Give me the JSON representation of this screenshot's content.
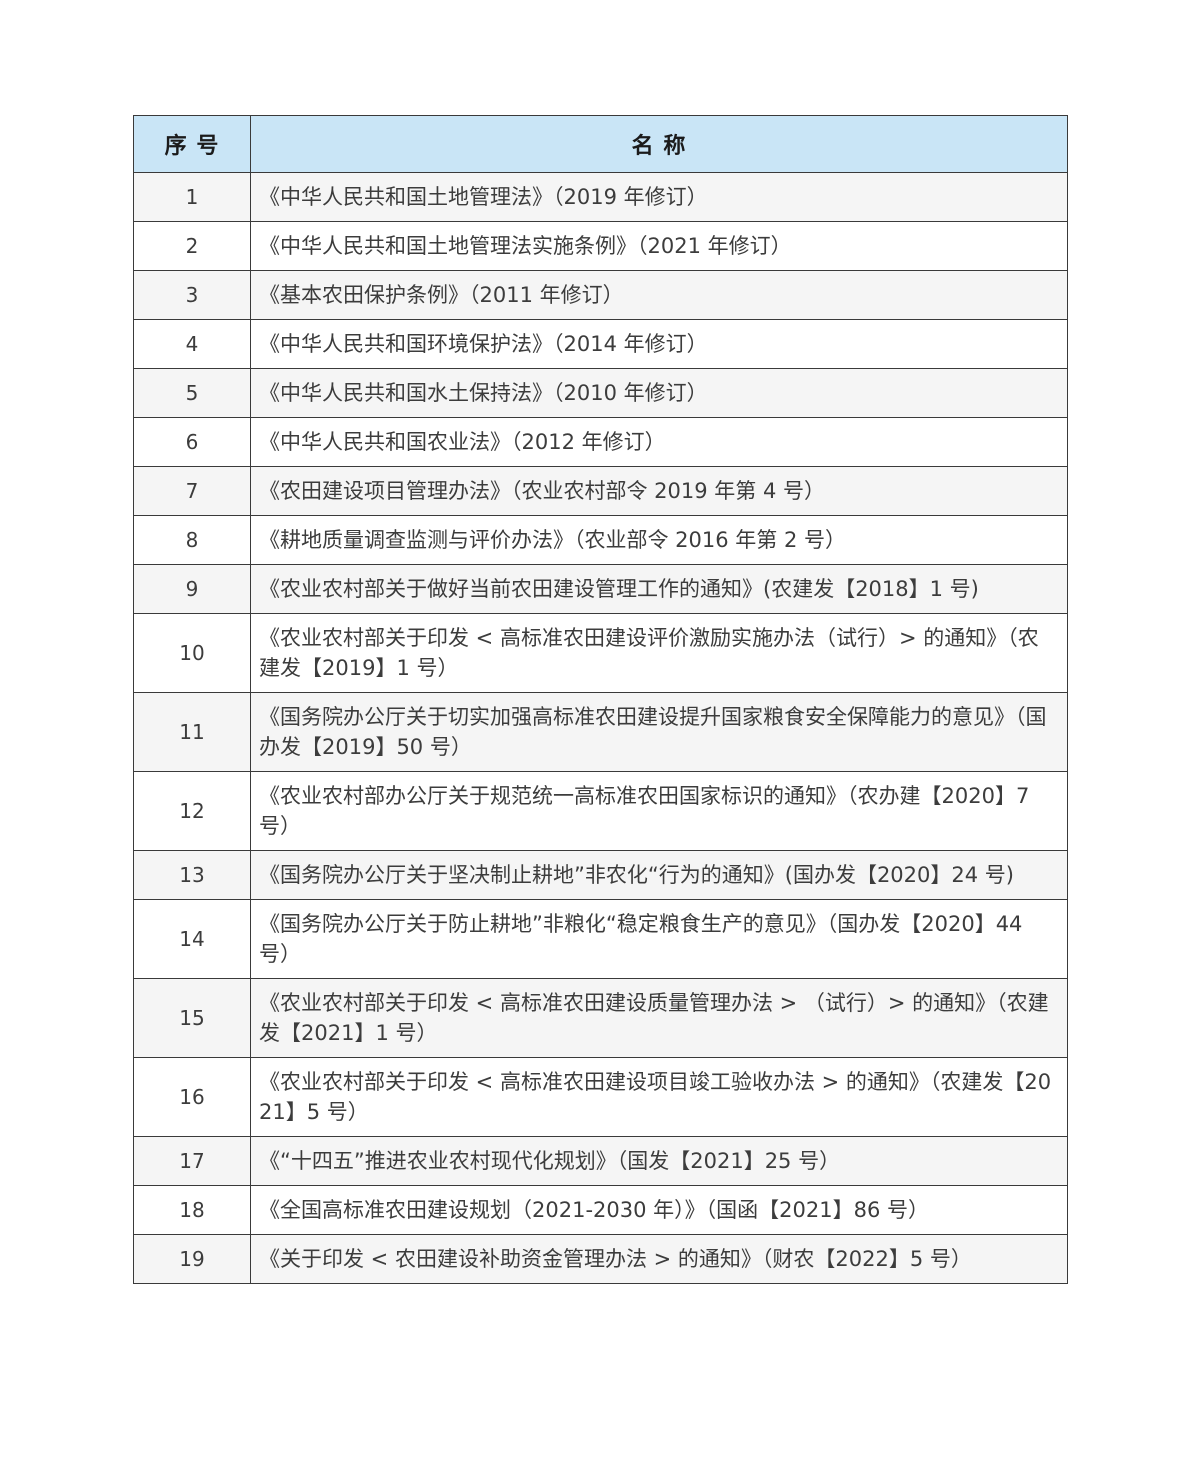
{
  "colors": {
    "header_bg": "#c9e5f6",
    "row_odd_bg": "#f5f5f5",
    "row_even_bg": "#ffffff",
    "border": "#3a3a3a",
    "text": "#3c3c3c"
  },
  "table": {
    "header": {
      "col_number": "序 号",
      "col_name": "名 称"
    },
    "rows": [
      {
        "no": "1",
        "name": "《中华人民共和国土地管理法》（2019 年修订）"
      },
      {
        "no": "2",
        "name": "《中华人民共和国土地管理法实施条例》（2021 年修订）"
      },
      {
        "no": "3",
        "name": "《基本农田保护条例》（2011 年修订）"
      },
      {
        "no": "4",
        "name": "《中华人民共和国环境保护法》（2014 年修订）"
      },
      {
        "no": "5",
        "name": "《中华人民共和国水土保持法》（2010 年修订）"
      },
      {
        "no": "6",
        "name": "《中华人民共和国农业法》（2012 年修订）"
      },
      {
        "no": "7",
        "name": "《农田建设项目管理办法》（农业农村部令 2019 年第 4 号）"
      },
      {
        "no": "8",
        "name": "《耕地质量调查监测与评价办法》（农业部令 2016 年第 2 号）"
      },
      {
        "no": "9",
        "name": "《农业农村部关于做好当前农田建设管理工作的通知》(农建发【2018】1 号)"
      },
      {
        "no": "10",
        "name": "《农业农村部关于印发 < 高标准农田建设评价激励实施办法（试行）> 的通知》（农建发【2019】1 号）"
      },
      {
        "no": "11",
        "name": "《国务院办公厅关于切实加强高标准农田建设提升国家粮食安全保障能力的意见》（国办发【2019】50 号）"
      },
      {
        "no": "12",
        "name": "《农业农村部办公厅关于规范统一高标准农田国家标识的通知》（农办建【2020】7 号）"
      },
      {
        "no": "13",
        "name": "《国务院办公厅关于坚决制止耕地”非农化“行为的通知》(国办发【2020】24 号)"
      },
      {
        "no": "14",
        "name": "《国务院办公厅关于防止耕地”非粮化“稳定粮食生产的意见》（国办发【2020】44 号）"
      },
      {
        "no": "15",
        "name": "《农业农村部关于印发 < 高标准农田建设质量管理办法 > （试行）> 的通知》（农建发【2021】1 号）"
      },
      {
        "no": "16",
        "name": "《农业农村部关于印发 < 高标准农田建设项目竣工验收办法 > 的通知》（农建发【2021】5 号）"
      },
      {
        "no": "17",
        "name": "《“十四五”推进农业农村现代化规划》（国发【2021】25 号）"
      },
      {
        "no": "18",
        "name": "《全国高标准农田建设规划（2021-2030 年）》（国函【2021】86 号）"
      },
      {
        "no": "19",
        "name": "《关于印发 < 农田建设补助资金管理办法 > 的通知》（财农【2022】5 号）"
      }
    ]
  }
}
